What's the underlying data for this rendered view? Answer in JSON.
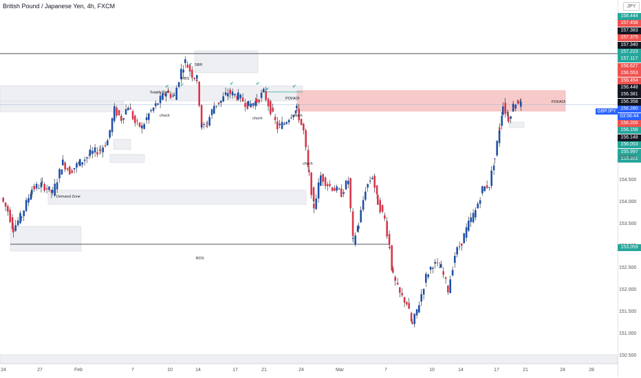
{
  "title": "British Pound / Japanese Yen, 4h, FXCM",
  "currency_button": "JPY",
  "colors": {
    "up": "#26a69a",
    "down": "#ef5350",
    "wick": "#131722",
    "upBody": "#1e4fa8",
    "downBody": "#d7364a",
    "zoneRed": "#f7c5c5",
    "zoneGray": "#e7e9ee"
  },
  "price_labels": [
    {
      "text": "158.444",
      "color": "#26a69a"
    },
    {
      "text": "157.458",
      "color": "#ef5350"
    },
    {
      "text": "157.383",
      "color": "#131722"
    },
    {
      "text": "157.375",
      "color": "#ef5350"
    },
    {
      "text": "157.340",
      "color": "#131722"
    },
    {
      "text": "157.223",
      "color": "#26a69a"
    },
    {
      "text": "157.117",
      "color": "#26a69a"
    },
    {
      "text": "156.627",
      "color": "#ef5350"
    },
    {
      "text": "156.553",
      "color": "#ef5350"
    },
    {
      "text": "156.454",
      "color": "#ef5350"
    },
    {
      "text": "156.448",
      "color": "#131722"
    },
    {
      "text": "156.381",
      "color": "#131722"
    },
    {
      "text": "156.358",
      "color": "#131722"
    },
    {
      "text": "156.280",
      "color": "#2962ff"
    },
    {
      "text": "03:56:44",
      "color": "#2962ff"
    },
    {
      "text": "156.200",
      "color": "#ef5350"
    },
    {
      "text": "156.158",
      "color": "#26a69a"
    },
    {
      "text": "156.148",
      "color": "#131722"
    },
    {
      "text": "156.053",
      "color": "#26a69a"
    },
    {
      "text": "155.997",
      "color": "#26a69a"
    },
    {
      "text": "155.901",
      "color": "#26a69a"
    }
  ],
  "current_symbol_label": "GBPJPY",
  "low_label": "153.059",
  "y_ticks": [
    "155.000",
    "154.500",
    "154.000",
    "153.500",
    "153.000",
    "152.500",
    "152.000",
    "151.500",
    "151.000",
    "150.500"
  ],
  "x_ticks": [
    "24",
    "27",
    "Feb",
    "7",
    "10",
    "14",
    "17",
    "21",
    "24",
    "Mar",
    "7",
    "10",
    "14",
    "17",
    "21",
    "24",
    "28"
  ],
  "annotations": {
    "poi": "POI/AOI",
    "poi2": "POI/AOI",
    "bos": "BOS",
    "choch1": "choch",
    "choch2": "choch",
    "choch3": "choch",
    "choch4": "choch",
    "demand": "Demand Zone",
    "supply": "Supply Zon",
    "rbs": "RBS",
    "sbr": "SBR"
  },
  "chart_data": {
    "type": "candlestick",
    "title": "British Pound / Japanese Yen, 4h, FXCM",
    "ylim": [
      150.4,
      158.6
    ],
    "x_ticks": [
      "24",
      "27",
      "Feb",
      "7",
      "10",
      "14",
      "17",
      "21",
      "24",
      "Mar",
      "7",
      "10",
      "14",
      "17",
      "21",
      "24",
      "28"
    ],
    "close_path": [
      [
        0,
        154.1
      ],
      [
        10,
        153.8
      ],
      [
        18,
        153.4
      ],
      [
        30,
        153.7
      ],
      [
        45,
        154.3
      ],
      [
        60,
        154.4
      ],
      [
        75,
        154.2
      ],
      [
        90,
        154.9
      ],
      [
        100,
        154.7
      ],
      [
        115,
        154.9
      ],
      [
        130,
        155.1
      ],
      [
        145,
        155.2
      ],
      [
        155,
        155.4
      ],
      [
        165,
        156.1
      ],
      [
        175,
        155.9
      ],
      [
        185,
        156.2
      ],
      [
        195,
        155.8
      ],
      [
        205,
        155.7
      ],
      [
        215,
        156.0
      ],
      [
        225,
        156.2
      ],
      [
        240,
        156.5
      ],
      [
        252,
        156.4
      ],
      [
        262,
        157.0
      ],
      [
        268,
        157.2
      ],
      [
        278,
        156.9
      ],
      [
        285,
        156.8
      ],
      [
        292,
        155.7
      ],
      [
        300,
        155.8
      ],
      [
        310,
        156.2
      ],
      [
        320,
        156.3
      ],
      [
        330,
        156.5
      ],
      [
        345,
        156.4
      ],
      [
        360,
        156.2
      ],
      [
        372,
        156.3
      ],
      [
        382,
        156.5
      ],
      [
        392,
        156.1
      ],
      [
        402,
        155.7
      ],
      [
        412,
        155.8
      ],
      [
        422,
        156.0
      ],
      [
        430,
        156.1
      ],
      [
        440,
        155.6
      ],
      [
        448,
        154.6
      ],
      [
        455,
        153.9
      ],
      [
        465,
        154.6
      ],
      [
        475,
        154.4
      ],
      [
        485,
        154.3
      ],
      [
        495,
        154.2
      ],
      [
        505,
        154.5
      ],
      [
        512,
        153.1
      ],
      [
        520,
        153.5
      ],
      [
        530,
        154.3
      ],
      [
        540,
        154.6
      ],
      [
        548,
        154.0
      ],
      [
        558,
        153.6
      ],
      [
        565,
        153.0
      ],
      [
        570,
        152.3
      ],
      [
        580,
        151.9
      ],
      [
        590,
        151.7
      ],
      [
        598,
        151.2
      ],
      [
        608,
        151.7
      ],
      [
        618,
        152.3
      ],
      [
        628,
        152.6
      ],
      [
        640,
        152.5
      ],
      [
        650,
        152.0
      ],
      [
        660,
        152.8
      ],
      [
        670,
        153.1
      ],
      [
        680,
        153.5
      ],
      [
        690,
        153.8
      ],
      [
        700,
        154.3
      ],
      [
        710,
        154.4
      ],
      [
        718,
        155.0
      ],
      [
        725,
        155.7
      ],
      [
        730,
        156.2
      ],
      [
        738,
        155.9
      ],
      [
        745,
        156.2
      ],
      [
        752,
        156.3
      ],
      [
        756,
        156.2
      ]
    ],
    "zones": [
      {
        "label": "POI/AOI",
        "from": 156.15,
        "to": 156.52,
        "color": "red"
      },
      {
        "label": "Demand Zone",
        "from": 153.98,
        "to": 154.18,
        "color": "gray"
      }
    ],
    "levels": [
      {
        "label": "BOS",
        "price": 153.04
      },
      {
        "price": 157.38
      },
      {
        "price": 156.2
      }
    ]
  }
}
